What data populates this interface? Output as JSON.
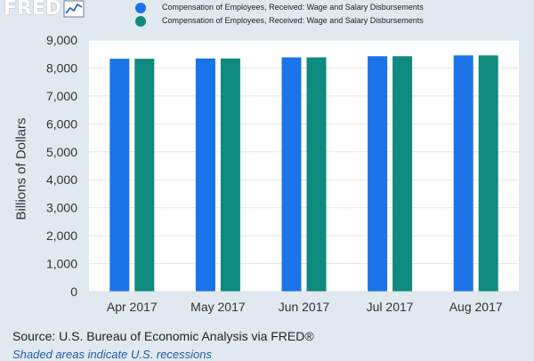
{
  "logo": {
    "text": "FRED",
    "icon": "line-chart-icon"
  },
  "legend": [
    {
      "label": "Compensation of Employees, Received: Wage and Salary Disbursements",
      "color": "#1a73e8"
    },
    {
      "label": "Compensation of Employees, Received: Wage and Salary Disbursements",
      "color": "#0f8a7e"
    }
  ],
  "source": "Source: U.S. Bureau of Economic Analysis via FRED®",
  "note": "Shaded areas indicate U.S. recessions",
  "chart_data": {
    "type": "bar",
    "title": "",
    "xlabel": "",
    "ylabel": "Billions of Dollars",
    "ylim": [
      0,
      9000
    ],
    "yticks": [
      0,
      1000,
      2000,
      3000,
      4000,
      5000,
      6000,
      7000,
      8000,
      9000
    ],
    "ytick_labels": [
      "0",
      "1,000",
      "2,000",
      "3,000",
      "4,000",
      "5,000",
      "6,000",
      "7,000",
      "8,000",
      "9,000"
    ],
    "categories": [
      "Apr 2017",
      "May 2017",
      "Jun 2017",
      "Jul 2017",
      "Aug 2017"
    ],
    "series": [
      {
        "name": "Compensation of Employees, Received: Wage and Salary Disbursements",
        "color": "#1a73e8",
        "values": [
          8330,
          8340,
          8380,
          8420,
          8450
        ]
      },
      {
        "name": "Compensation of Employees, Received: Wage and Salary Disbursements",
        "color": "#0f8a7e",
        "values": [
          8330,
          8340,
          8380,
          8420,
          8450
        ]
      }
    ],
    "grid": true,
    "legend_position": "top"
  }
}
